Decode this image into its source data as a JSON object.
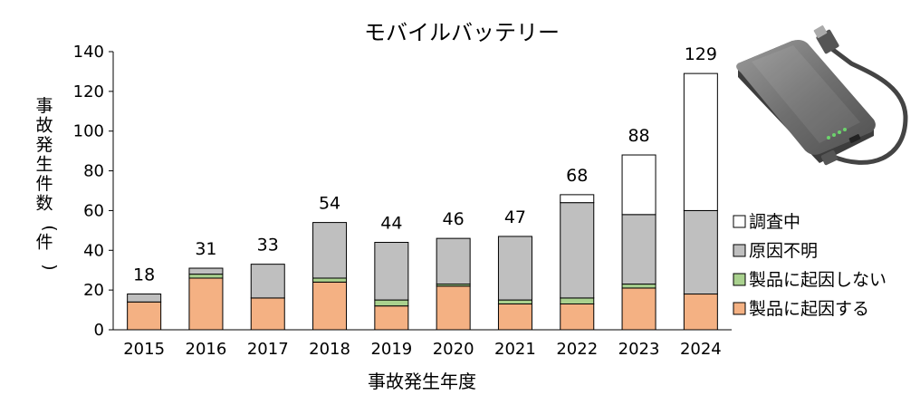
{
  "chart_data": {
    "type": "bar",
    "stacked": true,
    "title": "モバイルバッテリー",
    "xlabel": "事故発生年度",
    "ylabel": "事故発生件数（件）",
    "ylim": [
      0,
      140
    ],
    "yticks": [
      0,
      20,
      40,
      60,
      80,
      100,
      120,
      140
    ],
    "grid": false,
    "legend_position": "right",
    "categories": [
      "2015",
      "2016",
      "2017",
      "2018",
      "2019",
      "2020",
      "2021",
      "2022",
      "2023",
      "2024"
    ],
    "series": [
      {
        "name": "製品に起因する",
        "color": "#f4b183",
        "values": [
          14,
          26,
          16,
          24,
          12,
          22,
          13,
          13,
          21,
          18
        ]
      },
      {
        "name": "製品に起因しない",
        "color": "#a9d18e",
        "values": [
          0,
          2,
          0,
          2,
          3,
          1,
          2,
          3,
          2,
          0
        ]
      },
      {
        "name": "原因不明",
        "color": "#bfbfbf",
        "values": [
          4,
          3,
          17,
          28,
          29,
          23,
          32,
          48,
          35,
          42
        ]
      },
      {
        "name": "調査中",
        "color": "#ffffff",
        "values": [
          0,
          0,
          0,
          0,
          0,
          0,
          0,
          4,
          30,
          69
        ]
      }
    ],
    "totals": [
      18,
      31,
      33,
      54,
      44,
      46,
      47,
      68,
      88,
      129
    ]
  },
  "image": {
    "icon": "mobile-battery-icon"
  }
}
